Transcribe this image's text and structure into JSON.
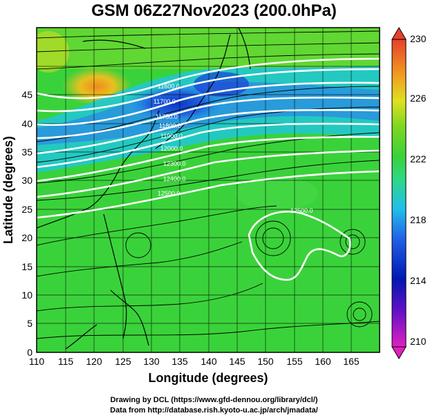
{
  "title": "GSM 06Z27Nov2023 (200.0hPa)",
  "xlabel": "Longitude (degrees)",
  "ylabel": "Latitude  (degrees)",
  "x_ticks": [
    "110",
    "115",
    "120",
    "125",
    "130",
    "135",
    "140",
    "145",
    "150",
    "155",
    "160",
    "165"
  ],
  "y_ticks": [
    "0",
    "5",
    "10",
    "15",
    "20",
    "25",
    "30",
    "35",
    "40",
    "45"
  ],
  "colorbar_ticks": [
    "210",
    "214",
    "218",
    "222",
    "226",
    "230"
  ],
  "contour_labels": [
    "11600.0",
    "11700.0",
    "11750.0",
    "11800.0",
    "11900.0",
    "12000.0",
    "12300.0",
    "12400.0",
    "12500.0",
    "12500.0"
  ],
  "credits": {
    "line1": "Drawing by DCL (https://www.gfd-dennou.org/library/dcl/)",
    "line2": "Data from http://database.rish.kyoto-u.ac.jp/arch/jmadata/"
  },
  "colors": {
    "high": "#e8402a",
    "orange": "#f0a020",
    "yellow": "#e0e020",
    "green": "#3ad23a",
    "cyan": "#20d0d8",
    "blue": "#2050e0",
    "navy": "#0018b0",
    "magenta": "#e020c0"
  },
  "map_data": {
    "lon_range": [
      110,
      170
    ],
    "lat_range": [
      0,
      50
    ],
    "colorbar_range": [
      210,
      230
    ],
    "field": "200 hPa temperature (K) with geopotential height contours and wind streamlines"
  }
}
